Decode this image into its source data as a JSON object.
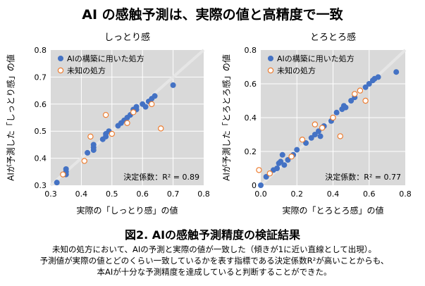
{
  "title": "AI の感触予測は、実際の値と高精度で一致",
  "figure_title": "図2. AIの感触予測精度の検証結果",
  "caption": [
    "未知の処方において、AIの予測と実際の値が一致した（傾きが1に近い直線として出現）。",
    "予測値が実際の値とどのくらい一致しているかを表す指標である決定係数R²が高いことからも、",
    "本AIが十分な予測精度を達成していると判断することができた。"
  ],
  "colors": {
    "plot_bg": "#d9d9d9",
    "grid": "#ffffff",
    "train": "#4472c4",
    "test_edge": "#ed7d31",
    "diagonal": "#e6e6e6"
  },
  "chart_data": [
    {
      "type": "scatter",
      "title": "しっとり感",
      "xlabel": "実際の「しっとり感」の値",
      "ylabel": "AIが予測した「しっとり感」の値",
      "xlim": [
        0.3,
        0.8
      ],
      "ylim": [
        0.3,
        0.8
      ],
      "xticks": [
        "0.3",
        "0.4",
        "0.5",
        "0.6",
        "0.7",
        "0.8"
      ],
      "yticks": [
        "0.3",
        "0.4",
        "0.5",
        "0.6",
        "0.7",
        "0.8"
      ],
      "legend_position": "top-left",
      "annotation": "決定係数：R² = 0.89",
      "series": [
        {
          "name": "AIの構築に用いた処方",
          "points": [
            [
              0.32,
              0.31
            ],
            [
              0.35,
              0.35
            ],
            [
              0.35,
              0.36
            ],
            [
              0.35,
              0.34
            ],
            [
              0.42,
              0.42
            ],
            [
              0.44,
              0.43
            ],
            [
              0.44,
              0.45
            ],
            [
              0.44,
              0.44
            ],
            [
              0.47,
              0.47
            ],
            [
              0.48,
              0.48
            ],
            [
              0.48,
              0.49
            ],
            [
              0.49,
              0.5
            ],
            [
              0.52,
              0.52
            ],
            [
              0.53,
              0.53
            ],
            [
              0.54,
              0.54
            ],
            [
              0.55,
              0.55
            ],
            [
              0.56,
              0.56
            ],
            [
              0.57,
              0.58
            ],
            [
              0.58,
              0.58
            ],
            [
              0.58,
              0.59
            ],
            [
              0.6,
              0.6
            ],
            [
              0.62,
              0.61
            ],
            [
              0.63,
              0.62
            ],
            [
              0.64,
              0.63
            ],
            [
              0.61,
              0.59
            ],
            [
              0.7,
              0.67
            ]
          ]
        },
        {
          "name": "未知の処方",
          "points": [
            [
              0.34,
              0.34
            ],
            [
              0.41,
              0.39
            ],
            [
              0.43,
              0.48
            ],
            [
              0.48,
              0.56
            ],
            [
              0.5,
              0.49
            ],
            [
              0.55,
              0.53
            ],
            [
              0.57,
              0.57
            ],
            [
              0.63,
              0.6
            ],
            [
              0.66,
              0.51
            ]
          ]
        }
      ]
    },
    {
      "type": "scatter",
      "title": "とろとろ感",
      "xlabel": "実際の「とろとろ感」の値",
      "ylabel": "AIが予測した「とろとろ感」の値",
      "xlim": [
        0,
        0.8
      ],
      "ylim": [
        0,
        0.8
      ],
      "xticks": [
        "0.0",
        "0.2",
        "0.4",
        "0.6",
        "0.8"
      ],
      "yticks": [
        "0",
        "0.2",
        "0.4",
        "0.6",
        "0.8"
      ],
      "legend_position": "top-left",
      "annotation": "決定係数：R² = 0.77",
      "series": [
        {
          "name": "AIの構築に用いた処方",
          "points": [
            [
              0.0,
              0.0
            ],
            [
              0.03,
              0.05
            ],
            [
              0.05,
              0.07
            ],
            [
              0.07,
              0.09
            ],
            [
              0.09,
              0.1
            ],
            [
              0.1,
              0.13
            ],
            [
              0.11,
              0.14
            ],
            [
              0.12,
              0.18
            ],
            [
              0.13,
              0.12
            ],
            [
              0.15,
              0.15
            ],
            [
              0.18,
              0.18
            ],
            [
              0.2,
              0.21
            ],
            [
              0.25,
              0.25
            ],
            [
              0.28,
              0.28
            ],
            [
              0.3,
              0.3
            ],
            [
              0.32,
              0.32
            ],
            [
              0.33,
              0.29
            ],
            [
              0.35,
              0.35
            ],
            [
              0.39,
              0.38
            ],
            [
              0.4,
              0.4
            ],
            [
              0.42,
              0.43
            ],
            [
              0.45,
              0.45
            ],
            [
              0.46,
              0.47
            ],
            [
              0.47,
              0.46
            ],
            [
              0.5,
              0.5
            ],
            [
              0.52,
              0.52
            ],
            [
              0.55,
              0.56
            ],
            [
              0.58,
              0.58
            ],
            [
              0.6,
              0.6
            ],
            [
              0.62,
              0.62
            ],
            [
              0.63,
              0.63
            ],
            [
              0.65,
              0.64
            ],
            [
              0.75,
              0.67
            ]
          ]
        },
        {
          "name": "未知の処方",
          "points": [
            [
              -0.01,
              0.09
            ],
            [
              0.05,
              0.07
            ],
            [
              0.17,
              0.17
            ],
            [
              0.23,
              0.27
            ],
            [
              0.3,
              0.36
            ],
            [
              0.34,
              0.34
            ],
            [
              0.4,
              0.4
            ],
            [
              0.44,
              0.29
            ],
            [
              0.52,
              0.54
            ],
            [
              0.55,
              0.56
            ],
            [
              0.58,
              0.5
            ]
          ]
        }
      ]
    }
  ]
}
